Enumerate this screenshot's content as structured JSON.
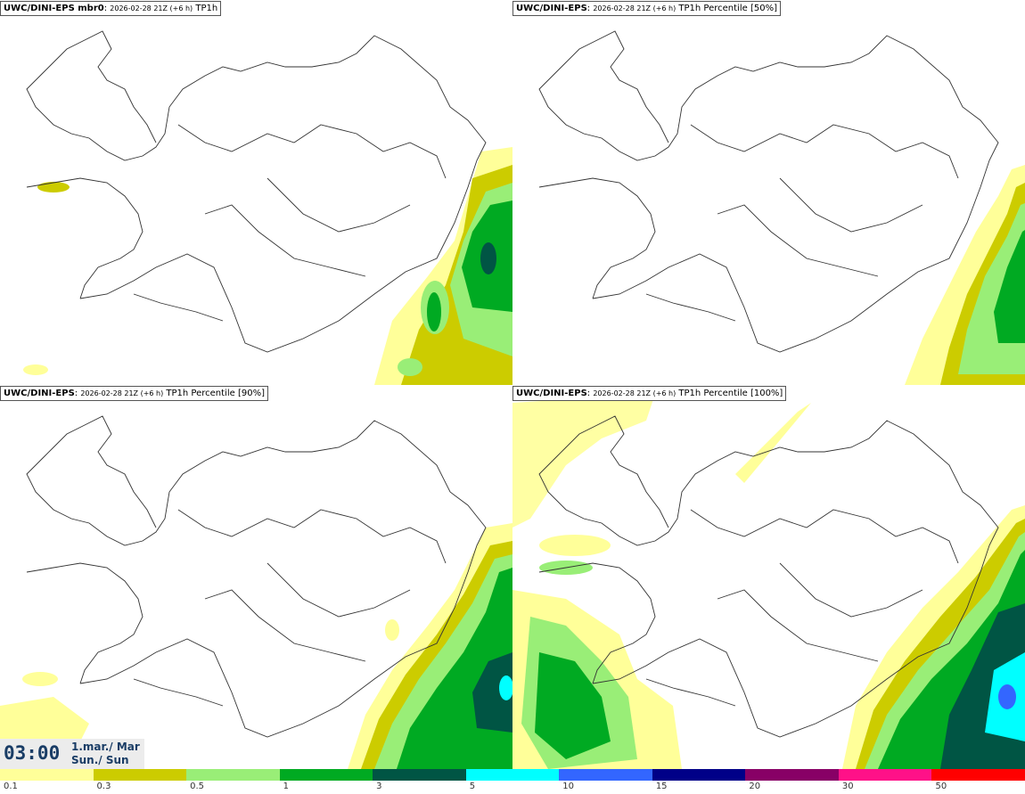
{
  "panels": [
    {
      "model": "UWC/DINI-EPS mbr0",
      "run": "2026-02-28 21Z (+6 h)",
      "field": "TP1h"
    },
    {
      "model": "UWC/DINI-EPS",
      "run": "2026-02-28 21Z (+6 h)",
      "field": "TP1h Percentile [50%]"
    },
    {
      "model": "UWC/DINI-EPS",
      "run": "2026-02-28 21Z (+6 h)",
      "field": "TP1h Percentile [90%]"
    },
    {
      "model": "UWC/DINI-EPS",
      "run": "2026-02-28 21Z (+6 h)",
      "field": "TP1h Percentile [100%]"
    }
  ],
  "valid_time": {
    "time": "03:00",
    "date_line1": "1.mar./ Mar",
    "date_line2": "Sun./ Sun"
  },
  "legend": {
    "colors": [
      "#ffff99",
      "#cccc00",
      "#99ee77",
      "#00aa22",
      "#005544",
      "#00ffff",
      "#3366ff",
      "#000088",
      "#880066",
      "#ff1188",
      "#ff0000"
    ],
    "ticks": [
      "0.1",
      "0.3",
      "0.5",
      "1",
      "3",
      "5",
      "10",
      "15",
      "20",
      "30",
      "50"
    ]
  }
}
